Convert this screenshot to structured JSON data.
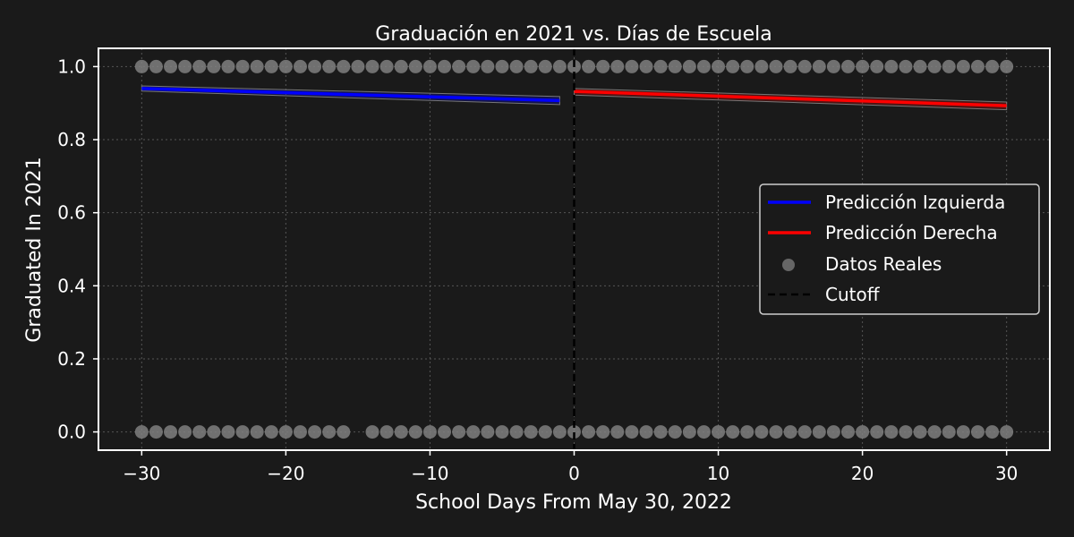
{
  "chart_data": {
    "type": "scatter",
    "title": "Graduación en 2021 vs. Días de Escuela",
    "xlabel": "School Days From May 30, 2022",
    "ylabel": "Graduated In 2021",
    "xlim": [
      -33,
      33
    ],
    "ylim": [
      -0.05,
      1.05
    ],
    "x_ticks": [
      "−30",
      "−20",
      "−10",
      "0",
      "10",
      "20",
      "30"
    ],
    "y_ticks": [
      "0.0",
      "0.2",
      "0.4",
      "0.6",
      "0.8",
      "1.0"
    ],
    "grid": true,
    "legend_position": "center-right",
    "legend": {
      "left_prediction": "Predicción Izquierda",
      "right_prediction": "Predicción Derecha",
      "actual_data": "Datos Reales",
      "cutoff": "Cutoff"
    },
    "colors": {
      "left_prediction": "#0000ff",
      "right_prediction": "#ff0000",
      "points": "#808080",
      "cutoff": "#000000",
      "background": "#1a1a1a"
    },
    "series": [
      {
        "name": "Datos Reales",
        "type": "scatter",
        "points_y1": [
          -30,
          -29,
          -28,
          -27,
          -26,
          -25,
          -24,
          -23,
          -22,
          -21,
          -20,
          -19,
          -18,
          -17,
          -16,
          -15,
          -14,
          -13,
          -12,
          -11,
          -10,
          -9,
          -8,
          -7,
          -6,
          -5,
          -4,
          -3,
          -2,
          -1,
          0,
          1,
          2,
          3,
          4,
          5,
          6,
          7,
          8,
          9,
          10,
          11,
          12,
          13,
          14,
          15,
          16,
          17,
          18,
          19,
          20,
          21,
          22,
          23,
          24,
          25,
          26,
          27,
          28,
          29,
          30
        ],
        "points_y0": [
          -30,
          -29,
          -28,
          -27,
          -26,
          -25,
          -24,
          -23,
          -22,
          -21,
          -20,
          -19,
          -18,
          -17,
          -16,
          -14,
          -13,
          -12,
          -11,
          -10,
          -9,
          -8,
          -7,
          -6,
          -5,
          -4,
          -3,
          -2,
          -1,
          0,
          1,
          2,
          3,
          4,
          5,
          6,
          7,
          8,
          9,
          10,
          11,
          12,
          13,
          14,
          15,
          16,
          17,
          18,
          19,
          20,
          21,
          22,
          23,
          24,
          25,
          26,
          27,
          28,
          29,
          30
        ]
      },
      {
        "name": "Predicción Izquierda",
        "type": "line",
        "x": [
          -30,
          -1
        ],
        "y": [
          0.94,
          0.907
        ],
        "band_upper": [
          0.947,
          0.918
        ],
        "band_lower": [
          0.933,
          0.896
        ]
      },
      {
        "name": "Predicción Derecha",
        "type": "line",
        "x": [
          0,
          30
        ],
        "y": [
          0.932,
          0.893
        ],
        "band_upper": [
          0.94,
          0.903
        ],
        "band_lower": [
          0.922,
          0.882
        ]
      }
    ],
    "cutoff_x": 0
  }
}
